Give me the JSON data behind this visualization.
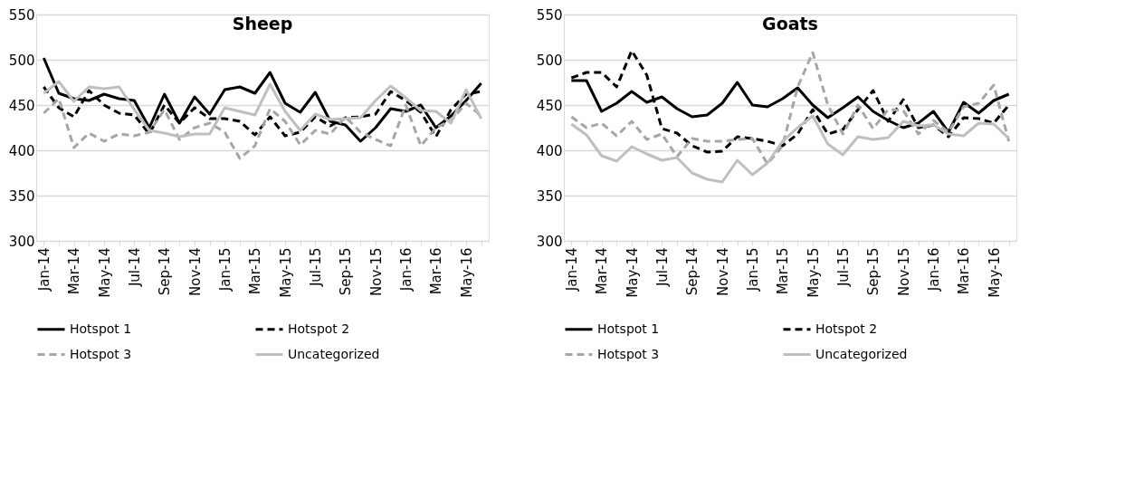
{
  "chart_data": [
    {
      "type": "line",
      "title": "Sheep",
      "categories": [
        "Jan-14",
        null,
        "Mar-14",
        null,
        "May-14",
        null,
        "Jul-14",
        null,
        "Sep-14",
        null,
        "Nov-14",
        null,
        "Jan-15",
        null,
        "Mar-15",
        null,
        "May-15",
        null,
        "Jul-15",
        null,
        "Sep-15",
        null,
        "Nov-15",
        null,
        "Jan-16",
        null,
        "Mar-16",
        null,
        "May-16",
        null
      ],
      "ylim": [
        300,
        550
      ],
      "yticks": [
        300,
        350,
        400,
        450,
        500,
        550
      ],
      "grid": "y",
      "legend": "bottom",
      "marker": "none",
      "series": [
        {
          "name": "Hotspot 1",
          "color": "#000000",
          "line_style": "solid",
          "values": [
            502,
            463,
            457,
            455,
            462,
            457,
            455,
            425,
            462,
            430,
            459,
            440,
            467,
            470,
            463,
            486,
            452,
            442,
            464,
            432,
            428,
            410,
            425,
            446,
            443,
            450,
            425,
            438,
            455,
            474
          ]
        },
        {
          "name": "Hotspot 2",
          "color": "#000000",
          "line_style": "dashed",
          "values": [
            470,
            447,
            437,
            466,
            450,
            441,
            439,
            418,
            450,
            430,
            447,
            435,
            435,
            432,
            417,
            437,
            416,
            420,
            437,
            427,
            436,
            437,
            440,
            465,
            455,
            442,
            415,
            445,
            462,
            465
          ]
        },
        {
          "name": "Hotspot 3",
          "color": "#a6a6a6",
          "line_style": "dashed",
          "values": [
            441,
            457,
            403,
            419,
            410,
            418,
            416,
            420,
            445,
            412,
            425,
            430,
            420,
            391,
            405,
            446,
            432,
            406,
            422,
            418,
            437,
            420,
            412,
            405,
            450,
            405,
            425,
            433,
            452,
            438
          ]
        },
        {
          "name": "Uncategorized",
          "color": "#bfbfbf",
          "line_style": "solid",
          "values": [
            463,
            476,
            454,
            470,
            468,
            470,
            445,
            422,
            419,
            415,
            418,
            418,
            447,
            443,
            439,
            473,
            443,
            422,
            440,
            434,
            435,
            436,
            455,
            471,
            458,
            444,
            443,
            430,
            467,
            435
          ]
        }
      ]
    },
    {
      "type": "line",
      "title": "Goats",
      "categories": [
        "Jan-14",
        null,
        "Mar-14",
        null,
        "May-14",
        null,
        "Jul-14",
        null,
        "Sep-14",
        null,
        "Nov-14",
        null,
        "Jan-15",
        null,
        "Mar-15",
        null,
        "May-15",
        null,
        "Jul-15",
        null,
        "Sep-15",
        null,
        "Nov-15",
        null,
        "Jan-16",
        null,
        "Mar-16",
        null,
        "May-16",
        null
      ],
      "ylim": [
        300,
        550
      ],
      "yticks": [
        300,
        350,
        400,
        450,
        500,
        550
      ],
      "grid": "y",
      "legend": "bottom",
      "marker": "none",
      "series": [
        {
          "name": "Hotspot 1",
          "color": "#000000",
          "line_style": "solid",
          "values": [
            477,
            477,
            443,
            452,
            465,
            453,
            459,
            446,
            437,
            439,
            452,
            475,
            450,
            448,
            457,
            469,
            450,
            436,
            447,
            459,
            443,
            433,
            425,
            430,
            443,
            420,
            453,
            441,
            455,
            462
          ]
        },
        {
          "name": "Hotspot 2",
          "color": "#000000",
          "line_style": "dashed",
          "values": [
            480,
            486,
            486,
            470,
            510,
            483,
            424,
            419,
            405,
            398,
            399,
            415,
            413,
            410,
            405,
            418,
            445,
            418,
            423,
            445,
            466,
            432,
            456,
            425,
            428,
            415,
            436,
            435,
            430,
            450
          ]
        },
        {
          "name": "Hotspot 3",
          "color": "#a6a6a6",
          "line_style": "dashed",
          "values": [
            437,
            425,
            430,
            416,
            432,
            412,
            418,
            393,
            413,
            410,
            410,
            412,
            413,
            385,
            405,
            470,
            508,
            450,
            418,
            450,
            424,
            445,
            444,
            418,
            433,
            420,
            448,
            452,
            472,
            410
          ]
        },
        {
          "name": "Uncategorized",
          "color": "#bfbfbf",
          "line_style": "solid",
          "values": [
            429,
            417,
            394,
            388,
            404,
            396,
            389,
            392,
            375,
            368,
            365,
            389,
            373,
            386,
            410,
            425,
            438,
            407,
            395,
            415,
            412,
            414,
            432,
            427,
            428,
            418,
            416,
            430,
            429,
            413
          ]
        }
      ]
    }
  ]
}
